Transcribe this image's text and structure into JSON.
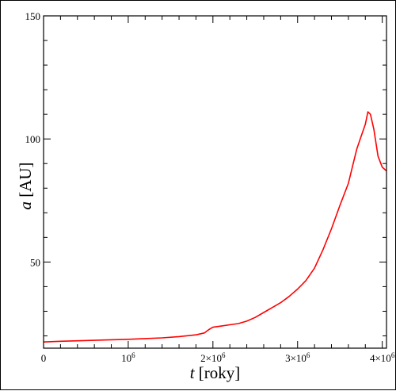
{
  "chart_data": {
    "type": "line",
    "xlabel_var": "t",
    "xlabel_unit": "[roky]",
    "ylabel_var": "a",
    "ylabel_unit": "[AU]",
    "xlim": [
      0,
      4050000
    ],
    "ylim": [
      15,
      150
    ],
    "x_ticks": [
      {
        "value": 0,
        "base": "0",
        "exp": ""
      },
      {
        "value": 1000000,
        "base": "10",
        "exp": "6"
      },
      {
        "value": 2000000,
        "base": "2×10",
        "exp": "6"
      },
      {
        "value": 3000000,
        "base": "3×10",
        "exp": "6"
      },
      {
        "value": 4000000,
        "base": "4×10",
        "exp": "6"
      }
    ],
    "y_ticks": [
      {
        "value": 50,
        "label": "50"
      },
      {
        "value": 100,
        "label": "100"
      },
      {
        "value": 150,
        "label": "150"
      }
    ],
    "line_color": "#ff0000",
    "series": [
      {
        "x": [
          0,
          200000,
          400000,
          600000,
          800000,
          1000000,
          1200000,
          1400000,
          1600000,
          1800000,
          1900000,
          1950000,
          2000000,
          2100000,
          2200000,
          2300000,
          2400000,
          2500000,
          2600000,
          2700000,
          2800000,
          2900000,
          3000000,
          3100000,
          3200000,
          3300000,
          3400000,
          3500000,
          3600000,
          3650000,
          3700000,
          3750000,
          3800000,
          3830000,
          3860000,
          3900000,
          3950000,
          4000000,
          4050000
        ],
        "y": [
          17.5,
          17.8,
          18.0,
          18.2,
          18.4,
          18.6,
          18.9,
          19.2,
          19.7,
          20.4,
          21.2,
          22.5,
          23.5,
          24.0,
          24.5,
          25.0,
          26.0,
          27.5,
          29.5,
          31.5,
          33.5,
          36.0,
          39.0,
          42.5,
          47.5,
          55.0,
          63.5,
          73.0,
          82.0,
          89.0,
          96.0,
          101.0,
          106.0,
          111.0,
          110.0,
          104.0,
          93.0,
          88.5,
          87.0
        ]
      }
    ]
  }
}
